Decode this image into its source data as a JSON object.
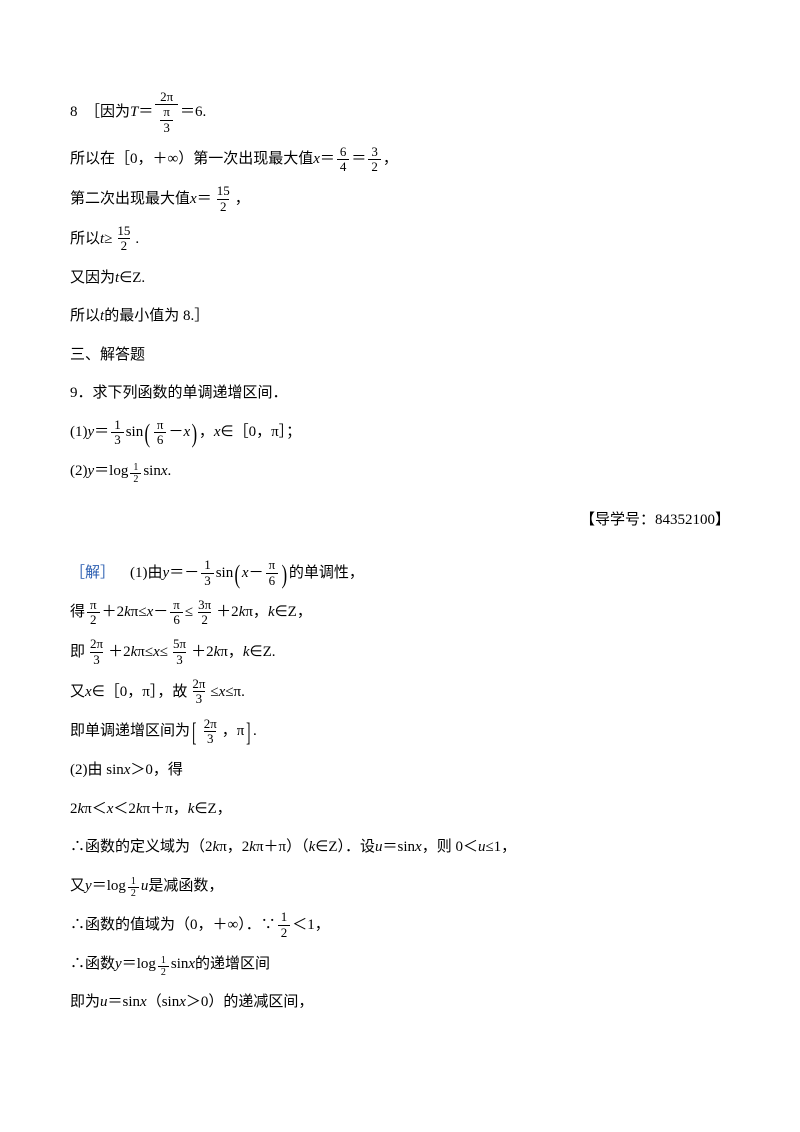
{
  "colors": {
    "text": "#000000",
    "accent": "#2a5db0",
    "background": "#ffffff"
  },
  "typography": {
    "body_fontsize": 15,
    "frac_fontsize": 13,
    "family": "SimSun"
  },
  "l01a": "8　［因为",
  "l01b": "T",
  "l01c": "＝",
  "l01f_num": "2π",
  "l01f_den_num": "π",
  "l01f_den_den": "3",
  "l01d": "＝6.",
  "l02a": "所以在［0，＋∞）第一次出现最大值 ",
  "l02x": "x",
  "l02b": "＝",
  "l02n1": "6",
  "l02d1": "4",
  "l02c": "＝",
  "l02n2": "3",
  "l02d2": "2",
  "l02e": "，",
  "l03a": "第二次出现最大值 ",
  "l03x": "x",
  "l03b": "＝",
  "l03n": "15",
  "l03d": "2",
  "l03c": "，",
  "l04a": "所以 ",
  "l04t": "t",
  "l04b": "≥",
  "l04n": "15",
  "l04d": "2",
  "l04c": ".",
  "l05a": "又因为 ",
  "l05t": "t",
  "l05b": "∈Z.",
  "l06a": "所以 ",
  "l06t": "t",
  "l06b": " 的最小值为 8.］",
  "l07": "三、解答题",
  "l08": "9．求下列函数的单调递增区间．",
  "l09a": "(1)",
  "l09y": "y",
  "l09b": "＝",
  "l09n": "1",
  "l09d": "3",
  "l09c": "sin",
  "l09pn": "π",
  "l09pd": "6",
  "l09m": "－",
  "l09x": "x",
  "l09e": "，",
  "l09x2": "x",
  "l09f": "∈［0，π］；",
  "l10a": "(2)",
  "l10y": "y",
  "l10b": "＝log",
  "l10n": "1",
  "l10d": "2",
  "l10c": "sin ",
  "l10x": "x",
  "l10e": ".",
  "note": "【导学号：84352100】",
  "l11a": "［解］",
  "l11b": "　(1)由",
  "l11y": "y",
  "l11c": "＝－",
  "l11n": "1",
  "l11d": "3",
  "l11s": "sin",
  "l11x": "x",
  "l11m": "－",
  "l11pn": "π",
  "l11pd": "6",
  "l11e": "的单调性，",
  "l12a": "得",
  "l12n1": "π",
  "l12d1": "2",
  "l12b": "＋2",
  "l12k1": "k",
  "l12c": "π≤",
  "l12x": "x",
  "l12d": "－",
  "l12n2": "π",
  "l12d2": "6",
  "l12e": "≤",
  "l12n3": "3π",
  "l12d3": "2",
  "l12f": "＋2",
  "l12k2": "k",
  "l12g": "π，",
  "l12k3": "k",
  "l12h": "∈Z，",
  "l13a": "即",
  "l13n1": "2π",
  "l13d1": "3",
  "l13b": "＋2",
  "l13k1": "k",
  "l13c": "π≤",
  "l13x": "x",
  "l13d": "≤",
  "l13n2": "5π",
  "l13d2": "3",
  "l13e": "＋2",
  "l13k2": "k",
  "l13f": "π，",
  "l13k3": "k",
  "l13g": "∈Z.",
  "l14a": "又",
  "l14x": "x",
  "l14b": "∈［0，π］，故",
  "l14n": "2π",
  "l14d": "3",
  "l14c": "≤",
  "l14x2": "x",
  "l14e": "≤π.",
  "l15a": "即单调递增区间为",
  "l15n": "2π",
  "l15d": "3",
  "l15b": "，π",
  "l15c": ".",
  "l16a": "(2)由 sin ",
  "l16x": "x",
  "l16b": "＞0，得",
  "l17a": "2",
  "l17k1": "k",
  "l17b": "π＜",
  "l17x": "x",
  "l17c": "＜2",
  "l17k2": "k",
  "l17d": "π＋π，",
  "l17k3": "k",
  "l17e": "∈Z，",
  "l18a": "∴函数的定义域为（2",
  "l18k1": "k",
  "l18b": "π，2",
  "l18k2": "k",
  "l18c": "π＋π）（",
  "l18k3": "k",
  "l18d": "∈Z）．设",
  "l18u": "u",
  "l18e": "＝sin ",
  "l18x": "x",
  "l18f": "，则 0＜",
  "l18u2": "u",
  "l18g": "≤1，",
  "l19a": "又",
  "l19y": "y",
  "l19b": "＝log",
  "l19n": "1",
  "l19d": "2",
  "l19u": "u",
  "l19c": " 是减函数，",
  "l20a": "∴函数的值域为（0，＋∞）．∵",
  "l20n": "1",
  "l20d": "2",
  "l20b": "＜1，",
  "l21a": "∴函数",
  "l21y": "y",
  "l21b": "＝log",
  "l21n": "1",
  "l21d": "2",
  "l21c": "sin ",
  "l21x": "x",
  "l21d2": " 的递增区间",
  "l22a": "即为",
  "l22u": "u",
  "l22b": "＝sin ",
  "l22x": "x",
  "l22c": "（sin ",
  "l22x2": "x",
  "l22d": "＞0）的递减区间，"
}
